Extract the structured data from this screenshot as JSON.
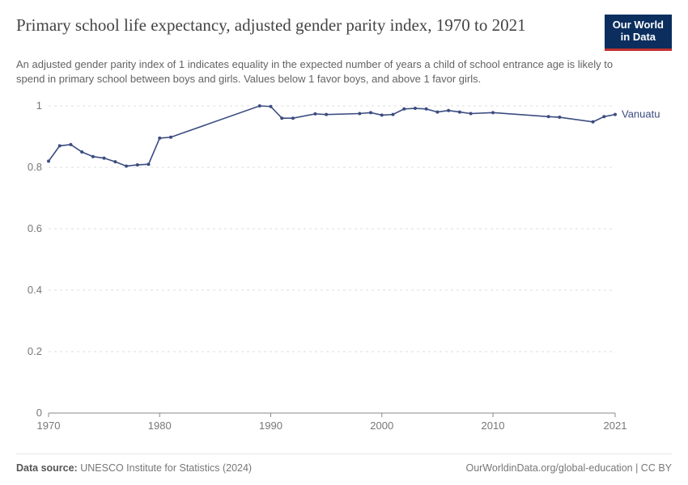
{
  "header": {
    "title": "Primary school life expectancy, adjusted gender parity index, 1970 to 2021",
    "subtitle": "An adjusted gender parity index of 1 indicates equality in the expected number of years a child of school entrance age is likely to spend in primary school between boys and girls. Values below 1 favor boys, and above 1 favor girls."
  },
  "logo": {
    "line1": "Our World",
    "line2": "in Data"
  },
  "chart": {
    "type": "line",
    "xlim": [
      1970,
      2021
    ],
    "ylim": [
      0,
      1
    ],
    "y_ticks": [
      0,
      0.2,
      0.4,
      0.6,
      0.8,
      1
    ],
    "x_ticks": [
      1970,
      1980,
      1990,
      2000,
      2010,
      2021
    ],
    "grid_color": "#d8d8d8",
    "axis_color": "#8a8a8a",
    "background_color": "#ffffff",
    "tick_font_size": 13,
    "label_font_size": 13,
    "series": [
      {
        "name": "Vanuatu",
        "color": "#3b4c80",
        "line_width": 1.6,
        "marker_radius": 2.0,
        "points": [
          [
            1970,
            0.82
          ],
          [
            1971,
            0.87
          ],
          [
            1972,
            0.874
          ],
          [
            1973,
            0.85
          ],
          [
            1974,
            0.835
          ],
          [
            1975,
            0.83
          ],
          [
            1976,
            0.818
          ],
          [
            1977,
            0.804
          ],
          [
            1978,
            0.808
          ],
          [
            1979,
            0.81
          ],
          [
            1980,
            0.895
          ],
          [
            1981,
            0.898
          ],
          [
            1989,
            1.0
          ],
          [
            1990,
            0.998
          ],
          [
            1991,
            0.96
          ],
          [
            1992,
            0.96
          ],
          [
            1994,
            0.974
          ],
          [
            1995,
            0.972
          ],
          [
            1998,
            0.975
          ],
          [
            1999,
            0.978
          ],
          [
            2000,
            0.97
          ],
          [
            2001,
            0.972
          ],
          [
            2002,
            0.99
          ],
          [
            2003,
            0.992
          ],
          [
            2004,
            0.99
          ],
          [
            2005,
            0.98
          ],
          [
            2006,
            0.985
          ],
          [
            2007,
            0.98
          ],
          [
            2008,
            0.975
          ],
          [
            2010,
            0.978
          ],
          [
            2015,
            0.965
          ],
          [
            2016,
            0.963
          ],
          [
            2019,
            0.948
          ],
          [
            2020,
            0.965
          ],
          [
            2021,
            0.972
          ]
        ]
      }
    ]
  },
  "footer": {
    "source_label": "Data source:",
    "source_text": "UNESCO Institute for Statistics (2024)",
    "attribution": "OurWorldinData.org/global-education | CC BY"
  }
}
